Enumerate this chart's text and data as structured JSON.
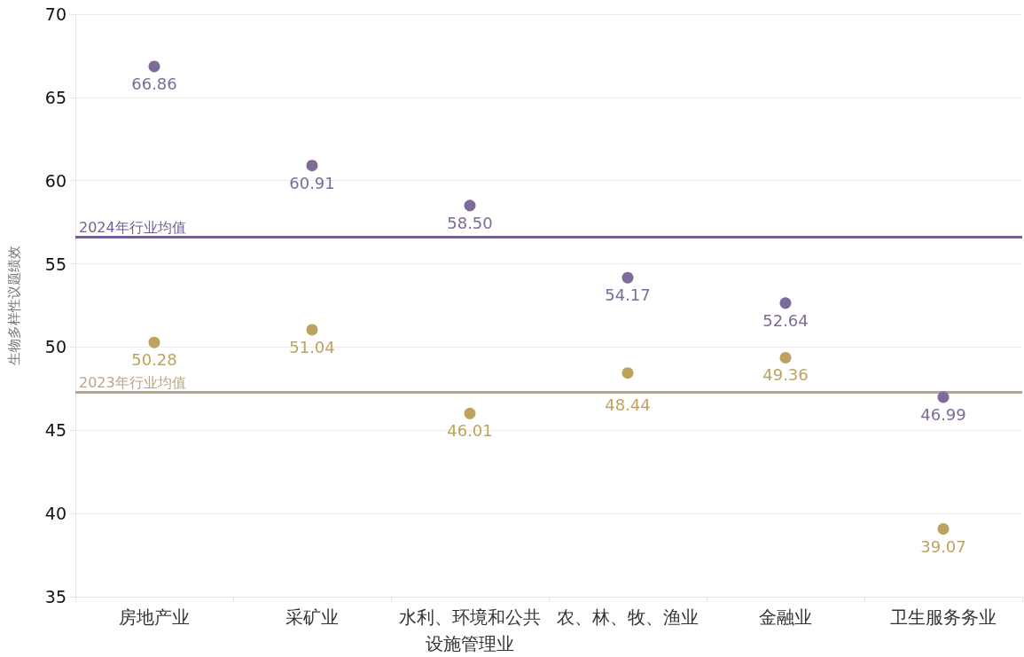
{
  "chart_data": {
    "type": "scatter",
    "ylabel": "生物多样性议题绩效",
    "categories": [
      "房地产业",
      "采矿业",
      "水利、环境和公共设施管理业",
      "农、林、牧、渔业",
      "金融业",
      "卫生服务务业"
    ],
    "series": [
      {
        "color": "#7d6b9a",
        "values": [
          66.86,
          60.91,
          58.5,
          54.17,
          52.64,
          46.99
        ],
        "value_labels": [
          "66.86",
          "60.91",
          "58.50",
          "54.17",
          "52.64",
          "46.99"
        ]
      },
      {
        "color": "#bda35f",
        "values": [
          50.28,
          51.04,
          46.01,
          48.44,
          49.36,
          39.07
        ],
        "value_labels": [
          "50.28",
          "51.04",
          "46.01",
          "48.44",
          "49.36",
          "39.07"
        ]
      }
    ],
    "ylim": [
      35,
      70
    ],
    "yticks": [
      35,
      40,
      45,
      50,
      55,
      60,
      65,
      70
    ],
    "ref_lines": [
      {
        "axis": "y",
        "value": 56.6,
        "label": "2024年行业均值",
        "color": "#735f93"
      },
      {
        "axis": "y",
        "value": 47.3,
        "label": "2023年行业均值",
        "color": "#b8a688"
      }
    ],
    "grid": "y",
    "marker": "circle"
  }
}
